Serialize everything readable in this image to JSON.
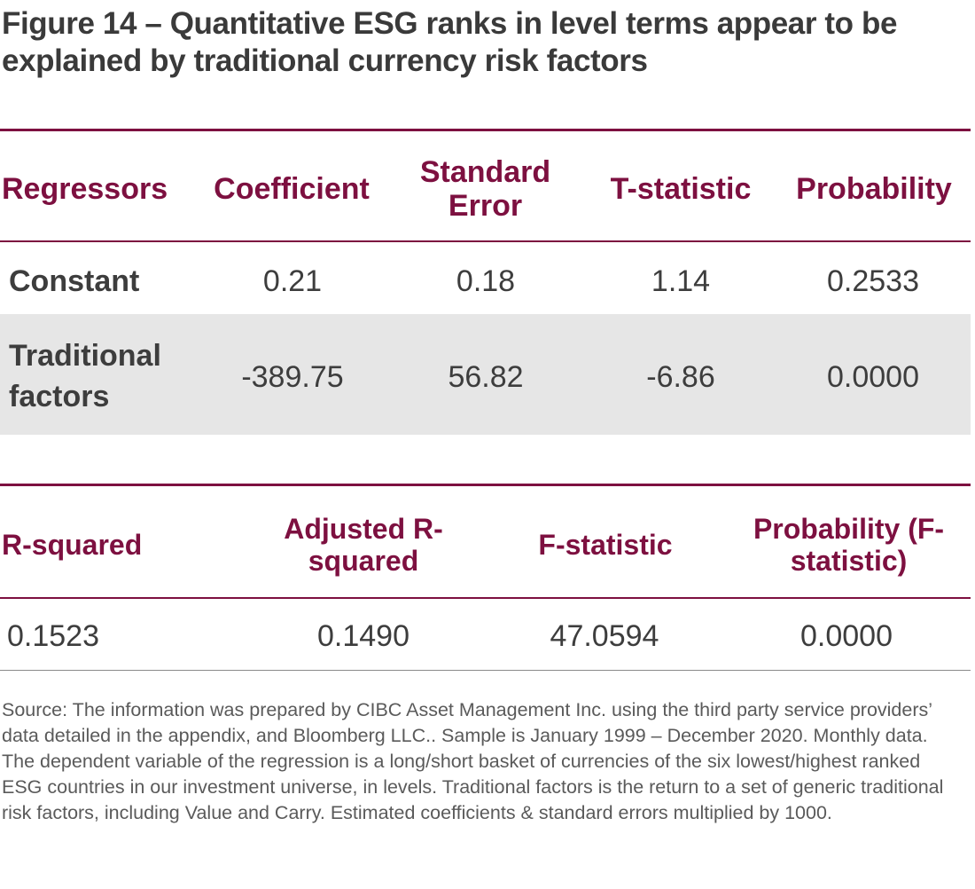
{
  "title": "Figure 14 – Quantitative ESG ranks in level terms appear to be explained by traditional currency risk factors",
  "table1": {
    "headers": [
      "Regressors",
      "Coefficient",
      "Standard Error",
      "T-statistic",
      "Probability"
    ],
    "rows": [
      {
        "label": "Constant",
        "values": [
          "0.21",
          "0.18",
          "1.14",
          "0.2533"
        ]
      },
      {
        "label": "Traditional factors",
        "values": [
          "-389.75",
          "56.82",
          "-6.86",
          "0.0000"
        ]
      }
    ]
  },
  "table2": {
    "headers": [
      "R-squared",
      "Adjusted R-squared",
      "F-statistic",
      "Probability (F-statistic)"
    ],
    "values": [
      "0.1523",
      "0.1490",
      "47.0594",
      "0.0000"
    ]
  },
  "source_note": "Source: The information was prepared by CIBC Asset Management Inc. using the third party service providers’ data detailed in the appendix, and Bloomberg LLC.. Sample is January 1999 – December 2020. Monthly data. The dependent variable of the regression is a long/short basket of currencies of the six lowest/highest ranked ESG countries in our investment universe, in levels. Traditional factors is the return to a set of generic traditional risk factors, including Value and Carry. Estimated coefficients & standard errors multiplied by 1000.",
  "colors": {
    "accent": "#7d1040",
    "shade": "#e6e6e6",
    "text": "#3d3d3d"
  }
}
